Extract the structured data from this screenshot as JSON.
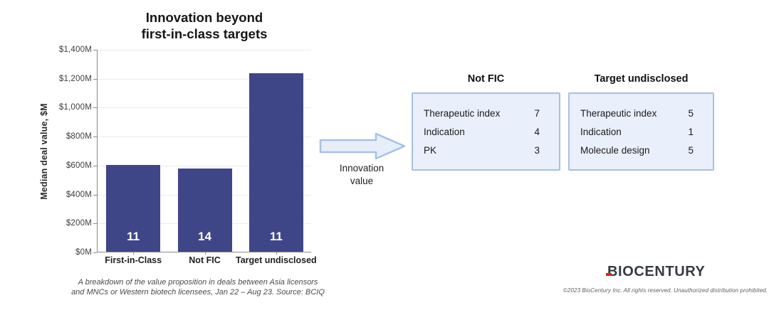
{
  "chart_data": {
    "type": "bar",
    "title": "Innovation beyond\nfirst-in-class targets",
    "ylabel": "Median deal value, $M",
    "xlabel": "",
    "categories": [
      "First-in-Class",
      "Not FIC",
      "Target undisclosed"
    ],
    "values": [
      600,
      575,
      1235
    ],
    "bar_labels": [
      "11",
      "14",
      "11"
    ],
    "ylim": [
      0,
      1400
    ],
    "ytick_step": 200,
    "ytick_format": "$ M",
    "grid": true,
    "legend": false,
    "bar_color": "#3f4687"
  },
  "annotation": {
    "arrow_label": "Innovation\nvalue"
  },
  "tables": [
    {
      "title": "Not FIC",
      "rows": [
        {
          "label": "Therapeutic index",
          "value": "7"
        },
        {
          "label": "Indication",
          "value": "4"
        },
        {
          "label": "PK",
          "value": "3"
        }
      ]
    },
    {
      "title": "Target undisclosed",
      "rows": [
        {
          "label": "Therapeutic index",
          "value": "5"
        },
        {
          "label": "Indication",
          "value": "1"
        },
        {
          "label": "Molecule design",
          "value": "5"
        }
      ]
    }
  ],
  "footer": {
    "footnote": "A breakdown of the value proposition in deals between Asia licensors\nand MNCs or Western biotech licensees, Jan 22 – Aug 23. Source: BCIQ",
    "logo": "BIOCENTURY",
    "copyright": "©2023 BioCentury Inc. All rights reserved. Unauthorized distribution prohibited."
  },
  "colors": {
    "bar": "#3f4687",
    "box_fill": "#e9f0fb",
    "box_border": "#a6c0e4",
    "logo_accent": "#e2231a"
  }
}
